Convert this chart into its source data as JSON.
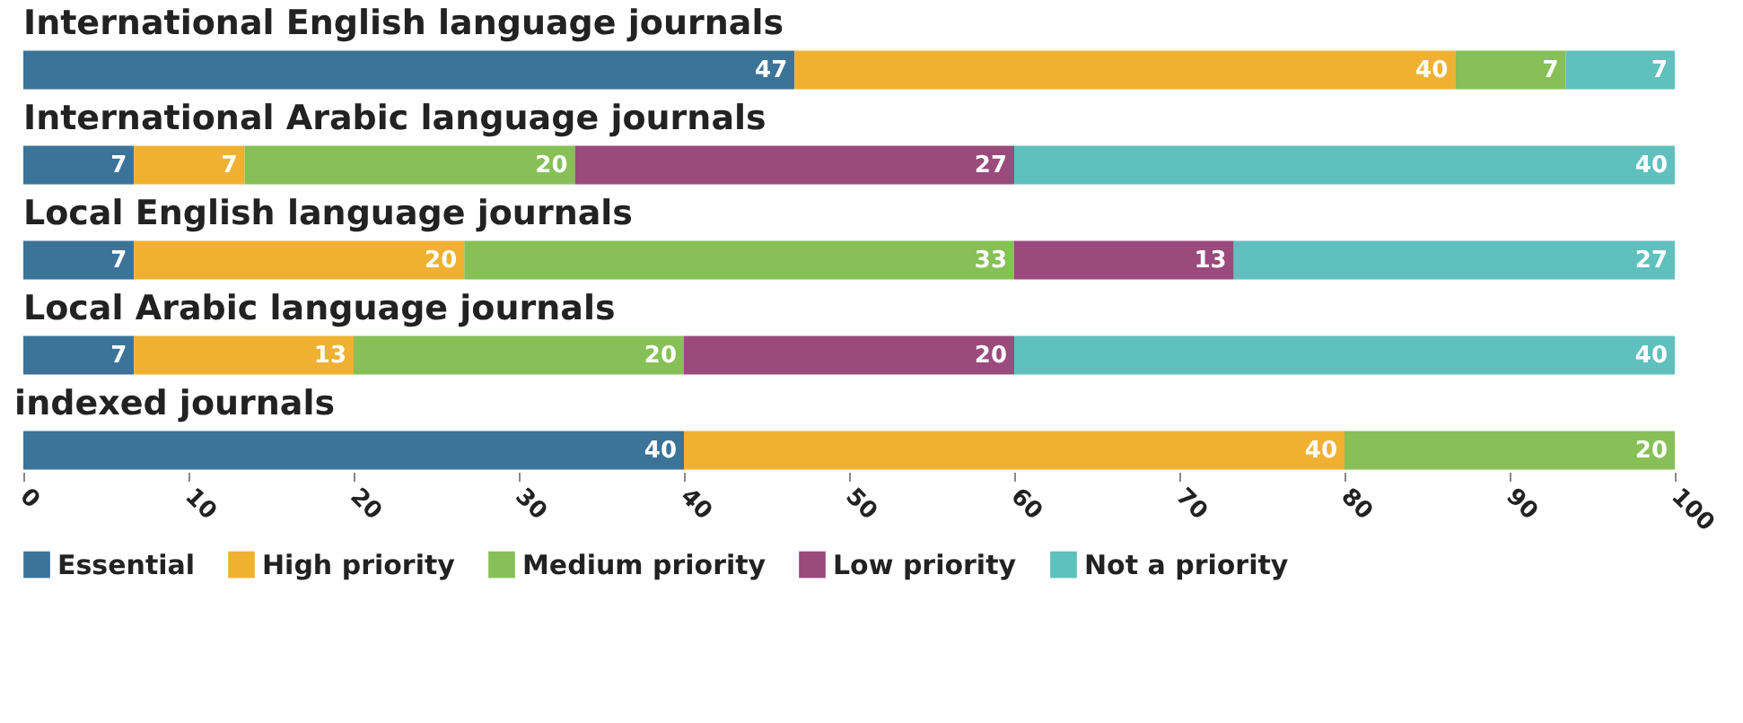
{
  "chart_data": {
    "type": "bar",
    "orientation": "horizontal",
    "stacked": true,
    "categories": [
      "International English language journals",
      "International Arabic language journals",
      "Local English language journals",
      "Local Arabic language journals",
      "indexed journals"
    ],
    "series": [
      {
        "name": "Essential",
        "color": "#3b7399",
        "values": [
          46.7,
          6.7,
          6.7,
          6.7,
          40
        ],
        "value_labels": [
          "47",
          "7",
          "7",
          "7",
          "40"
        ]
      },
      {
        "name": "High priority",
        "color": "#f0b132",
        "values": [
          40,
          6.7,
          20,
          13.3,
          40
        ],
        "value_labels": [
          "40",
          "7",
          "20",
          "13",
          "40"
        ]
      },
      {
        "name": "Medium priority",
        "color": "#86c056",
        "values": [
          6.7,
          20,
          33.3,
          20,
          20
        ],
        "value_labels": [
          "7",
          "20",
          "33",
          "20",
          "20"
        ]
      },
      {
        "name": "Low priority",
        "color": "#9a4a7c",
        "values": [
          null,
          26.6,
          13.3,
          20,
          null
        ],
        "value_labels": [
          null,
          "27",
          "13",
          "20",
          null
        ]
      },
      {
        "name": "Not a priority",
        "color": "#5fc0bd",
        "values": [
          6.6,
          40,
          26.7,
          40,
          null
        ],
        "value_labels": [
          "7",
          "40",
          "27",
          "40",
          null
        ]
      }
    ],
    "xlim": [
      0,
      100
    ],
    "xticks": [
      0,
      10,
      20,
      30,
      40,
      50,
      60,
      70,
      80,
      90,
      100
    ],
    "tick_labels": "x",
    "legend": "bottom",
    "grid": false
  }
}
